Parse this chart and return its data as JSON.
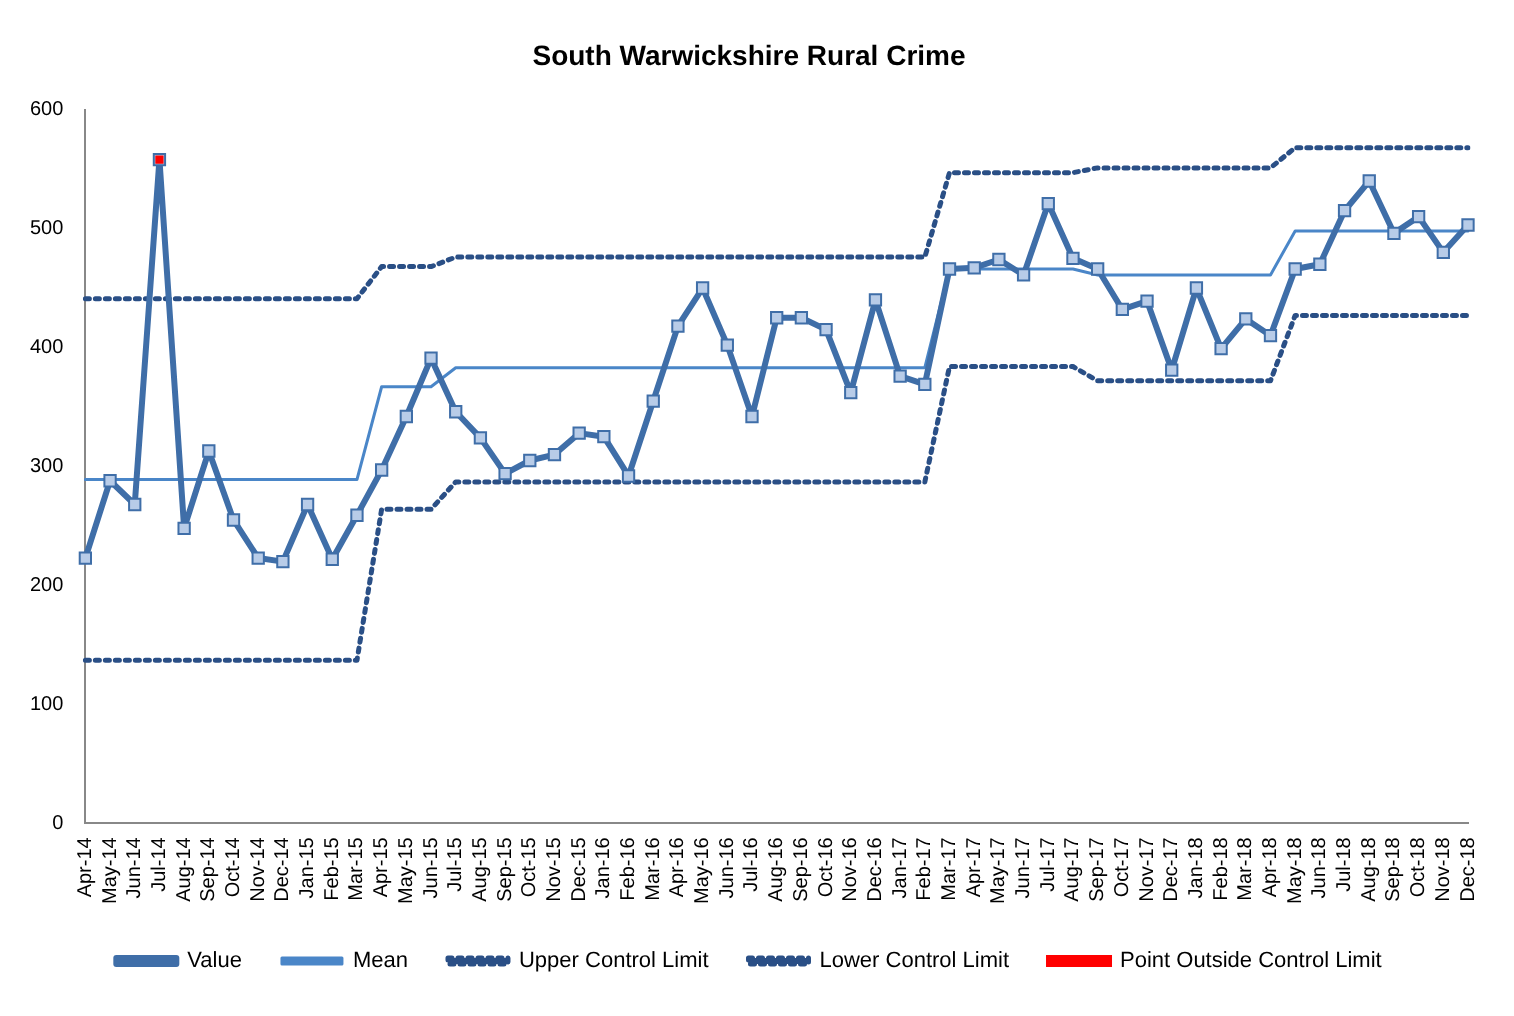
{
  "chart_data": {
    "type": "line",
    "title": "South Warwickshire Rural Crime",
    "categories": [
      "Apr-14",
      "May-14",
      "Jun-14",
      "Jul-14",
      "Aug-14",
      "Sep-14",
      "Oct-14",
      "Nov-14",
      "Dec-14",
      "Jan-15",
      "Feb-15",
      "Mar-15",
      "Apr-15",
      "May-15",
      "Jun-15",
      "Jul-15",
      "Aug-15",
      "Sep-15",
      "Oct-15",
      "Nov-15",
      "Dec-15",
      "Jan-16",
      "Feb-16",
      "Mar-16",
      "Apr-16",
      "May-16",
      "Jun-16",
      "Jul-16",
      "Aug-16",
      "Sep-16",
      "Oct-16",
      "Nov-16",
      "Dec-16",
      "Jan-17",
      "Feb-17",
      "Mar-17",
      "Apr-17",
      "May-17",
      "Jun-17",
      "Jul-17",
      "Aug-17",
      "Sep-17",
      "Oct-17",
      "Nov-17",
      "Dec-17",
      "Jan-18",
      "Feb-18",
      "Mar-18",
      "Apr-18",
      "May-18",
      "Jun-18",
      "Jul-18",
      "Aug-18",
      "Sep-18",
      "Oct-18",
      "Nov-18",
      "Dec-18"
    ],
    "series": [
      {
        "name": "Value",
        "color": "#3f6ea8",
        "marker": "square",
        "line_style": "solid",
        "values": [
          223,
          288,
          268,
          558,
          248,
          313,
          255,
          223,
          220,
          268,
          222,
          259,
          297,
          342,
          391,
          346,
          324,
          294,
          305,
          310,
          328,
          325,
          292,
          355,
          418,
          450,
          402,
          342,
          425,
          425,
          415,
          362,
          440,
          376,
          369,
          466,
          467,
          474,
          461,
          521,
          475,
          466,
          432,
          439,
          381,
          450,
          399,
          424,
          410,
          466,
          470,
          515,
          540,
          496,
          510,
          480,
          503
        ]
      },
      {
        "name": "Mean",
        "color": "#4a86c8",
        "marker": "none",
        "line_style": "solid",
        "values": [
          289,
          289,
          289,
          289,
          289,
          289,
          289,
          289,
          289,
          289,
          289,
          289,
          367,
          367,
          367,
          383,
          383,
          383,
          383,
          383,
          383,
          383,
          383,
          383,
          383,
          383,
          383,
          383,
          383,
          383,
          383,
          383,
          383,
          383,
          383,
          466,
          466,
          466,
          466,
          466,
          466,
          461,
          461,
          461,
          461,
          461,
          461,
          461,
          461,
          498,
          498,
          498,
          498,
          498,
          498,
          498,
          498
        ]
      },
      {
        "name": "Upper Control Limit",
        "color": "#2a4f86",
        "marker": "none",
        "line_style": "dotted",
        "values": [
          441,
          441,
          441,
          441,
          441,
          441,
          441,
          441,
          441,
          441,
          441,
          441,
          468,
          468,
          468,
          476,
          476,
          476,
          476,
          476,
          476,
          476,
          476,
          476,
          476,
          476,
          476,
          476,
          476,
          476,
          476,
          476,
          476,
          476,
          476,
          547,
          547,
          547,
          547,
          547,
          547,
          551,
          551,
          551,
          551,
          551,
          551,
          551,
          551,
          568,
          568,
          568,
          568,
          568,
          568,
          568,
          568
        ]
      },
      {
        "name": "Lower Control Limit",
        "color": "#2a4f86",
        "marker": "none",
        "line_style": "dotted",
        "values": [
          137,
          137,
          137,
          137,
          137,
          137,
          137,
          137,
          137,
          137,
          137,
          137,
          264,
          264,
          264,
          287,
          287,
          287,
          287,
          287,
          287,
          287,
          287,
          287,
          287,
          287,
          287,
          287,
          287,
          287,
          287,
          287,
          287,
          287,
          287,
          384,
          384,
          384,
          384,
          384,
          384,
          372,
          372,
          372,
          372,
          372,
          372,
          372,
          372,
          427,
          427,
          427,
          427,
          427,
          427,
          427,
          427
        ]
      },
      {
        "name": "Point Outside Control Limit",
        "type": "scatter",
        "color": "#ff0000",
        "marker": "square",
        "values": [
          null,
          null,
          null,
          558,
          null,
          null,
          null,
          null,
          null,
          null,
          null,
          null,
          null,
          null,
          null,
          null,
          null,
          null,
          null,
          null,
          null,
          null,
          null,
          null,
          null,
          null,
          null,
          null,
          null,
          null,
          null,
          null,
          null,
          null,
          null,
          null,
          null,
          null,
          null,
          null,
          null,
          null,
          null,
          null,
          null,
          null,
          null,
          null,
          null,
          null,
          null,
          null,
          null,
          null,
          null,
          null,
          null
        ]
      }
    ],
    "ylim": [
      0,
      600
    ],
    "yticks": [
      0,
      100,
      200,
      300,
      400,
      500,
      600
    ],
    "grid": false,
    "legend": "bottom"
  }
}
